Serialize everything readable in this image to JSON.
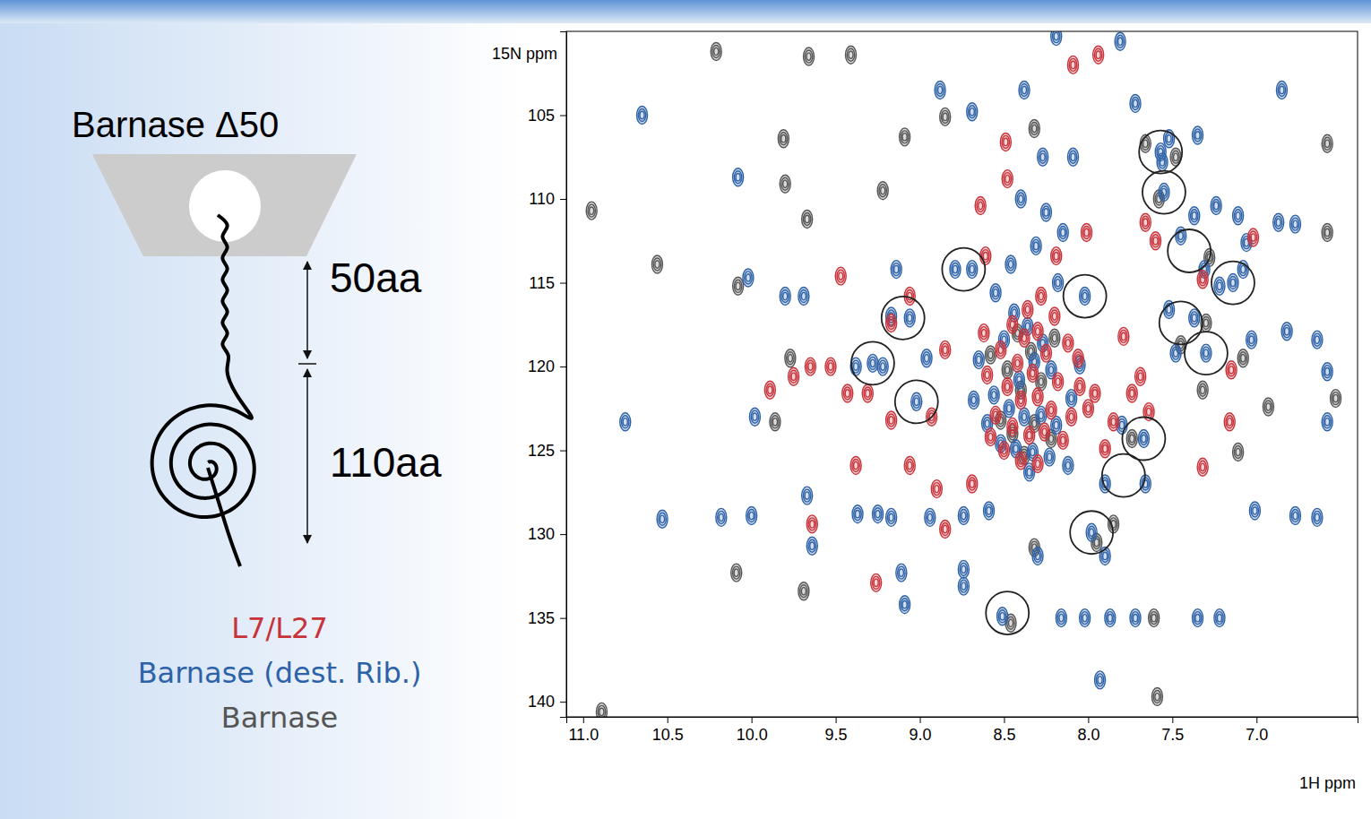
{
  "diagram": {
    "title": "Barnase Δ50",
    "labels": [
      "50aa",
      "110aa"
    ]
  },
  "chart_data": {
    "type": "scatter",
    "xlabel": "1H ppm",
    "ylabel": "15N ppm",
    "xlim": [
      11.1,
      6.4
    ],
    "ylim": [
      100,
      140.9
    ],
    "xticks": [
      {
        "value": 11,
        "label": "11.0"
      },
      10.5,
      {
        "value": 10,
        "label": "10.0"
      },
      9.5,
      {
        "value": 9,
        "label": "9.0"
      },
      8.5,
      {
        "value": 8,
        "label": "8.0"
      },
      7.5,
      {
        "value": 7,
        "label": "7.0"
      }
    ],
    "yticks": [
      105,
      110,
      115,
      120,
      125,
      130,
      135,
      140
    ],
    "marker": "contour",
    "legend": "left",
    "series": [
      {
        "name": "L7/L27",
        "color": "#c8323a",
        "x": [
          7.94,
          8.09,
          8.49,
          7.6,
          7.66,
          7.02,
          7.32,
          9.47,
          9.06,
          9.17,
          8.85,
          9.89,
          9.75,
          9.65,
          9.53,
          9.43,
          9.31,
          9.17,
          8.93,
          9.38,
          9.64,
          9.06,
          8.9,
          8.69,
          9.26,
          8.85,
          8.06,
          7.96,
          7.85,
          7.74,
          7.64,
          7.79,
          7.9,
          7.69,
          7.15,
          7.16,
          7.32,
          8.48,
          8.64,
          8.19,
          8.01,
          8.61,
          8.45,
          8.38,
          8.3,
          8.52,
          8.42,
          8.33,
          8.25,
          8.18,
          8.48,
          8.4,
          8.3,
          8.22,
          8.55,
          8.45,
          8.35,
          8.26,
          8.15,
          8.5,
          8.4,
          8.3,
          8.6,
          8.58,
          8.12,
          8.05,
          8.1,
          8.36,
          8.28,
          8.2,
          8.62,
          8.0
        ],
        "values": [
          101.4,
          102.0,
          106.6,
          112.5,
          111.4,
          112.3,
          114.8,
          114.6,
          115.8,
          117.4,
          119.0,
          121.4,
          120.6,
          120.0,
          120.0,
          121.6,
          121.6,
          123.2,
          123.0,
          125.9,
          129.4,
          125.9,
          127.3,
          127.0,
          132.9,
          129.7,
          119.5,
          121.6,
          123.3,
          121.6,
          122.7,
          118.2,
          124.9,
          120.6,
          120.2,
          123.3,
          126.0,
          108.8,
          110.4,
          113.4,
          112.0,
          113.4,
          117.5,
          118.3,
          117.9,
          119.0,
          119.8,
          120.4,
          119.2,
          120.9,
          121.2,
          122.0,
          121.8,
          122.6,
          122.9,
          123.6,
          124.1,
          123.9,
          124.4,
          125.0,
          125.6,
          125.8,
          120.5,
          124.2,
          118.6,
          121.2,
          123.0,
          116.6,
          115.8,
          117.0,
          118.0,
          122.5
        ]
      },
      {
        "name": "Barnase (dest. Rib.)",
        "color": "#2e62a8",
        "x": [
          10.65,
          10.08,
          8.88,
          8.69,
          8.38,
          8.19,
          7.81,
          7.52,
          7.35,
          6.85,
          7.56,
          7.24,
          7.37,
          7.45,
          7.31,
          7.22,
          7.11,
          6.87,
          6.77,
          7.08,
          7.52,
          7.37,
          7.48,
          10.02,
          9.8,
          9.69,
          9.17,
          9.06,
          9.38,
          9.22,
          8.96,
          8.79,
          8.69,
          9.14,
          10.53,
          10.18,
          10.0,
          9.37,
          9.25,
          9.17,
          8.94,
          8.74,
          8.59,
          10.75,
          9.98,
          9.67,
          9.64,
          8.51,
          8.16,
          8.02,
          7.87,
          7.72,
          7.35,
          7.22,
          8.74,
          8.74,
          8.3,
          7.9,
          7.93,
          9.09,
          9.11,
          7.01,
          6.77,
          6.64,
          6.58,
          6.58,
          6.64,
          6.82,
          7.03,
          7.06,
          7.9,
          7.66,
          7.8,
          8.09,
          8.27,
          7.72,
          7.57,
          7.55,
          7.14,
          7.3,
          9.28,
          8.02,
          7.67,
          7.98,
          9.02,
          8.44,
          8.36,
          8.27,
          8.5,
          8.41,
          8.32,
          8.22,
          8.56,
          8.47,
          8.38,
          8.28,
          8.19,
          8.6,
          8.52,
          8.43,
          8.33,
          8.23,
          8.12,
          8.46,
          8.31,
          8.55,
          8.18,
          8.65,
          8.1,
          8.05,
          8.68,
          8.35,
          8.15,
          8.25,
          8.4
        ],
        "values": [
          105.0,
          108.7,
          103.5,
          104.8,
          103.5,
          100.3,
          100.6,
          106.4,
          106.2,
          103.5,
          107.8,
          110.4,
          111.0,
          112.2,
          114.2,
          115.2,
          111.0,
          111.4,
          111.5,
          114.2,
          116.6,
          117.1,
          119.2,
          114.7,
          115.8,
          115.8,
          117.0,
          117.1,
          120.0,
          120.0,
          119.5,
          114.2,
          114.2,
          114.2,
          129.1,
          129.0,
          128.9,
          128.8,
          128.8,
          129.0,
          129.0,
          128.9,
          128.6,
          123.3,
          123.0,
          127.7,
          130.7,
          134.9,
          135.0,
          135.0,
          135.0,
          135.0,
          135.0,
          135.0,
          132.1,
          133.1,
          131.3,
          131.3,
          138.7,
          134.2,
          132.3,
          128.6,
          128.9,
          129.0,
          123.3,
          120.3,
          118.4,
          117.9,
          118.4,
          112.6,
          127.0,
          127.0,
          123.5,
          107.5,
          107.5,
          104.3,
          107.2,
          109.6,
          115.0,
          119.2,
          119.8,
          115.8,
          124.3,
          129.9,
          122.1,
          116.8,
          117.6,
          118.6,
          118.4,
          120.8,
          119.7,
          120.2,
          121.7,
          122.5,
          123.0,
          122.9,
          123.5,
          123.4,
          124.6,
          124.9,
          125.1,
          125.4,
          125.9,
          113.9,
          112.8,
          115.6,
          115.0,
          119.6,
          121.9,
          119.9,
          122.0,
          126.3,
          112.0,
          110.8,
          110.0
        ]
      },
      {
        "name": "Barnase",
        "color": "#555555",
        "x": [
          10.21,
          9.41,
          9.66,
          10.95,
          10.56,
          9.81,
          9.8,
          9.67,
          9.22,
          9.09,
          8.85,
          8.32,
          7.66,
          6.58,
          6.58,
          6.53,
          6.93,
          7.08,
          7.32,
          9.77,
          9.86,
          10.09,
          9.69,
          10.89,
          7.59,
          7.61,
          7.11,
          8.32,
          10.08,
          7.48,
          7.3,
          7.45,
          7.74,
          7.85,
          7.58,
          7.28,
          8.46,
          7.95,
          8.42,
          8.34,
          8.48,
          8.28,
          8.4,
          8.52,
          8.32,
          8.22,
          8.45,
          8.38,
          8.2,
          8.58
        ],
        "values": [
          101.2,
          101.4,
          101.5,
          110.7,
          113.9,
          106.4,
          109.1,
          111.2,
          109.5,
          106.3,
          105.1,
          105.8,
          106.7,
          106.7,
          112.0,
          121.9,
          122.4,
          119.5,
          121.4,
          119.5,
          123.3,
          132.3,
          133.4,
          140.6,
          139.7,
          135.0,
          125.1,
          130.8,
          115.2,
          107.5,
          117.4,
          118.7,
          124.3,
          129.4,
          110.0,
          113.5,
          135.3,
          130.5,
          118.0,
          119.1,
          120.2,
          120.9,
          121.4,
          123.2,
          123.4,
          124.3,
          124.0,
          125.3,
          118.3,
          119.3
        ]
      }
    ],
    "highlights": {
      "x": [
        7.57,
        7.55,
        7.4,
        7.14,
        7.45,
        7.3,
        8.74,
        9.1,
        9.28,
        9.02,
        8.02,
        7.67,
        7.79,
        7.98,
        8.48
      ],
      "y": [
        107.2,
        109.6,
        113.1,
        115.0,
        117.4,
        119.2,
        114.2,
        117.1,
        119.8,
        122.1,
        115.8,
        124.3,
        126.5,
        129.9,
        134.7
      ]
    }
  }
}
